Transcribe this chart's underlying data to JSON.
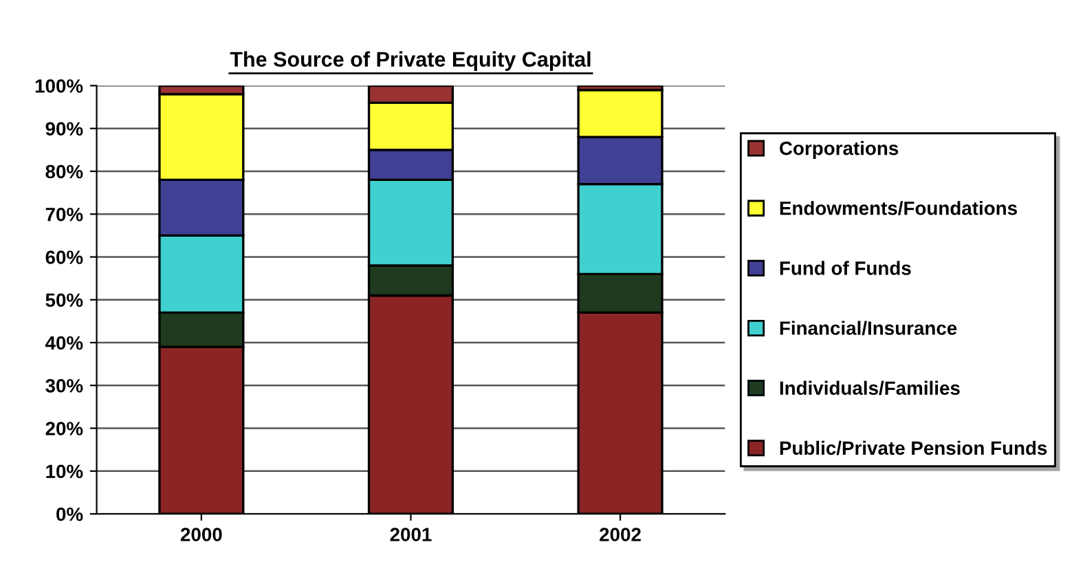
{
  "chart_data": {
    "type": "bar",
    "title": "The Source of Private Equity Capital",
    "stacked": true,
    "categories": [
      "2000",
      "2001",
      "2002"
    ],
    "series": [
      {
        "name": "Public/Private Pension Funds",
        "color": "#8b2525",
        "values": [
          39,
          51,
          47
        ]
      },
      {
        "name": "Individuals/Families",
        "color": "#1f3a1f",
        "values": [
          8,
          7,
          9
        ]
      },
      {
        "name": "Financial/Insurance",
        "color": "#40d0d0",
        "values": [
          18,
          20,
          21
        ]
      },
      {
        "name": "Fund of Funds",
        "color": "#404094",
        "values": [
          13,
          7,
          11
        ]
      },
      {
        "name": "Endowments/Foundations",
        "color": "#ffff33",
        "values": [
          20,
          11,
          11
        ]
      },
      {
        "name": "Corporations",
        "color": "#993333",
        "values": [
          2,
          4,
          1
        ]
      }
    ],
    "ylim": [
      0,
      100
    ],
    "yticks": [
      {
        "value": 0,
        "label": "0%"
      },
      {
        "value": 10,
        "label": "10%"
      },
      {
        "value": 20,
        "label": "20%"
      },
      {
        "value": 30,
        "label": "30%"
      },
      {
        "value": 40,
        "label": "40%"
      },
      {
        "value": 50,
        "label": "50%"
      },
      {
        "value": 60,
        "label": "60%"
      },
      {
        "value": 70,
        "label": "70%"
      },
      {
        "value": 80,
        "label": "80%"
      },
      {
        "value": 90,
        "label": "90%"
      },
      {
        "value": 100,
        "label": "100%"
      }
    ],
    "grid": "y",
    "legend": "right"
  }
}
